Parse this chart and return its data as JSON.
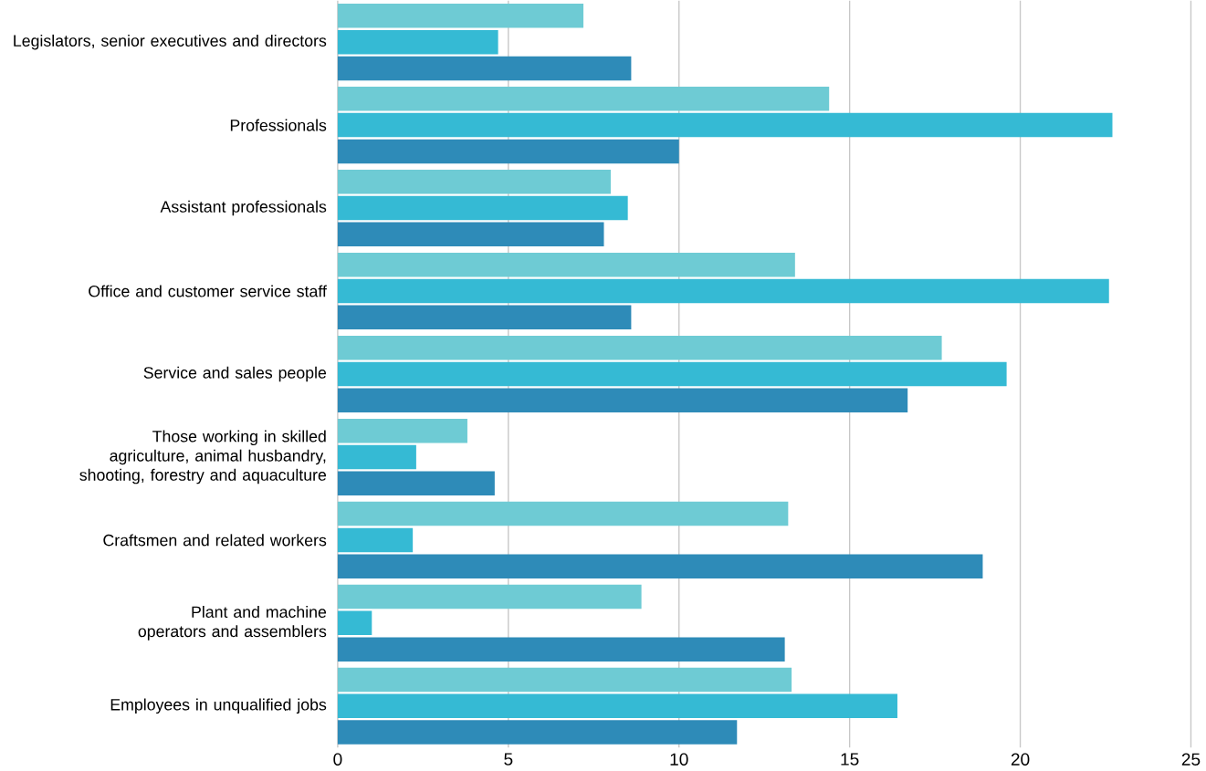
{
  "chart_data": {
    "type": "bar",
    "orientation": "horizontal",
    "categories": [
      "Legislators, senior executives and directors",
      "Professionals",
      "Assistant professionals",
      "Office and customer service staff",
      "Service and sales people",
      "Those working in skilled agriculture, animal husbandry, shooting, forestry and aquaculture",
      "Craftsmen and related workers",
      "Plant and machine operators and assemblers",
      "Employees in unqualified jobs"
    ],
    "series": [
      {
        "color": "#6ecbd4",
        "values": [
          7.2,
          14.4,
          8.0,
          13.4,
          17.7,
          3.8,
          13.2,
          8.9,
          13.3
        ]
      },
      {
        "color": "#35bad4",
        "values": [
          4.7,
          22.7,
          8.5,
          22.6,
          19.6,
          2.3,
          2.2,
          1.0,
          16.4
        ]
      },
      {
        "color": "#2e8bb8",
        "values": [
          8.6,
          10.0,
          7.8,
          8.6,
          16.7,
          4.6,
          18.9,
          13.1,
          11.7
        ]
      }
    ],
    "xlim": [
      0,
      25
    ],
    "xticks": [
      0,
      5,
      10,
      15,
      20,
      25
    ],
    "grid": "x"
  }
}
